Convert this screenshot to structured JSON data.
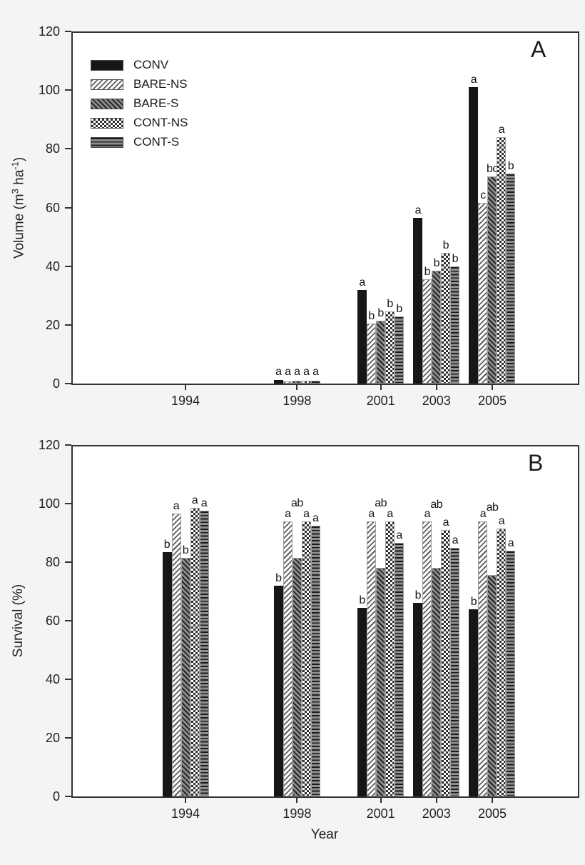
{
  "figure": {
    "panel_a_label": "A",
    "panel_b_label": "B",
    "colors": {
      "background": "#f4f4f4",
      "frame": "#333333",
      "solid_bar": "#161616"
    }
  },
  "chart_data": [
    {
      "type": "bar",
      "panel_label": "A",
      "ylabel_text": "Volume (m3 ha-1)",
      "ylabel_parts": [
        {
          "t": "Volume (m",
          "sup": false
        },
        {
          "t": "3",
          "sup": true
        },
        {
          "t": " ha",
          "sup": false
        },
        {
          "t": "-1",
          "sup": true
        },
        {
          "t": ")",
          "sup": false
        }
      ],
      "ylim": [
        0,
        120
      ],
      "yticks": [
        0,
        20,
        40,
        60,
        80,
        100,
        120
      ],
      "grid": false,
      "categories": [
        1994,
        1998,
        2001,
        2003,
        2005
      ],
      "legend": {
        "show": true,
        "position": "top-left"
      },
      "series": [
        {
          "name": "CONV",
          "pattern": "solid",
          "values": [
            null,
            1.3,
            32,
            56.5,
            101
          ],
          "letters": [
            null,
            "a",
            "a",
            "a",
            "a"
          ],
          "letters_v": [
            null,
            2,
            null,
            null,
            null
          ]
        },
        {
          "name": "BARE-NS",
          "pattern": "diag-light",
          "values": [
            null,
            0.8,
            20.5,
            35.5,
            61.5
          ],
          "letters": [
            null,
            "a",
            "b",
            "b",
            "c"
          ],
          "letters_v": [
            null,
            2,
            null,
            null,
            null
          ]
        },
        {
          "name": "BARE-S",
          "pattern": "diag-dark",
          "values": [
            null,
            0.9,
            21.5,
            38.5,
            70.5
          ],
          "letters": [
            null,
            "a",
            "b",
            "b",
            "bc"
          ],
          "letters_v": [
            null,
            2,
            null,
            null,
            null
          ]
        },
        {
          "name": "CONT-NS",
          "pattern": "checker",
          "values": [
            null,
            1.0,
            24.5,
            44.5,
            84
          ],
          "letters": [
            null,
            "a",
            "b",
            "b",
            "a"
          ],
          "letters_v": [
            null,
            2,
            null,
            null,
            null
          ]
        },
        {
          "name": "CONT-S",
          "pattern": "hstripe",
          "values": [
            null,
            1.0,
            23,
            40,
            71.5
          ],
          "letters": [
            null,
            "a",
            "b",
            "b",
            "b"
          ],
          "letters_v": [
            null,
            2,
            null,
            null,
            null
          ]
        }
      ]
    },
    {
      "type": "bar",
      "panel_label": "B",
      "ylabel": "Survival (%)",
      "xlabel": "Year",
      "ylim": [
        0,
        120
      ],
      "yticks": [
        0,
        20,
        40,
        60,
        80,
        100,
        120
      ],
      "grid": false,
      "categories": [
        1994,
        1998,
        2001,
        2003,
        2005
      ],
      "legend": {
        "show": false
      },
      "series": [
        {
          "name": "CONV",
          "pattern": "solid",
          "values": [
            83.5,
            72,
            64.5,
            66,
            64
          ],
          "letters": [
            "b",
            "b",
            "b",
            "b",
            "b"
          ]
        },
        {
          "name": "BARE-NS",
          "pattern": "diag-light",
          "values": [
            96.5,
            94,
            94,
            94,
            94
          ],
          "letters": [
            "a",
            "a",
            "a",
            "a",
            "a"
          ]
        },
        {
          "name": "BARE-S",
          "pattern": "diag-dark",
          "values": [
            81.5,
            81.5,
            78,
            78,
            75.5
          ],
          "letters": [
            "b",
            "ab",
            "ab",
            "ab",
            "ab"
          ],
          "letters_v": [
            null,
            98,
            98,
            97.5,
            96.5
          ]
        },
        {
          "name": "CONT-NS",
          "pattern": "checker",
          "values": [
            98.5,
            94,
            94,
            91,
            91.5
          ],
          "letters": [
            "a",
            "a",
            "a",
            "a",
            "a"
          ]
        },
        {
          "name": "CONT-S",
          "pattern": "hstripe",
          "values": [
            97.5,
            92.5,
            86.5,
            85,
            84
          ],
          "letters": [
            "a",
            "a",
            "a",
            "a",
            "a"
          ]
        }
      ]
    }
  ]
}
